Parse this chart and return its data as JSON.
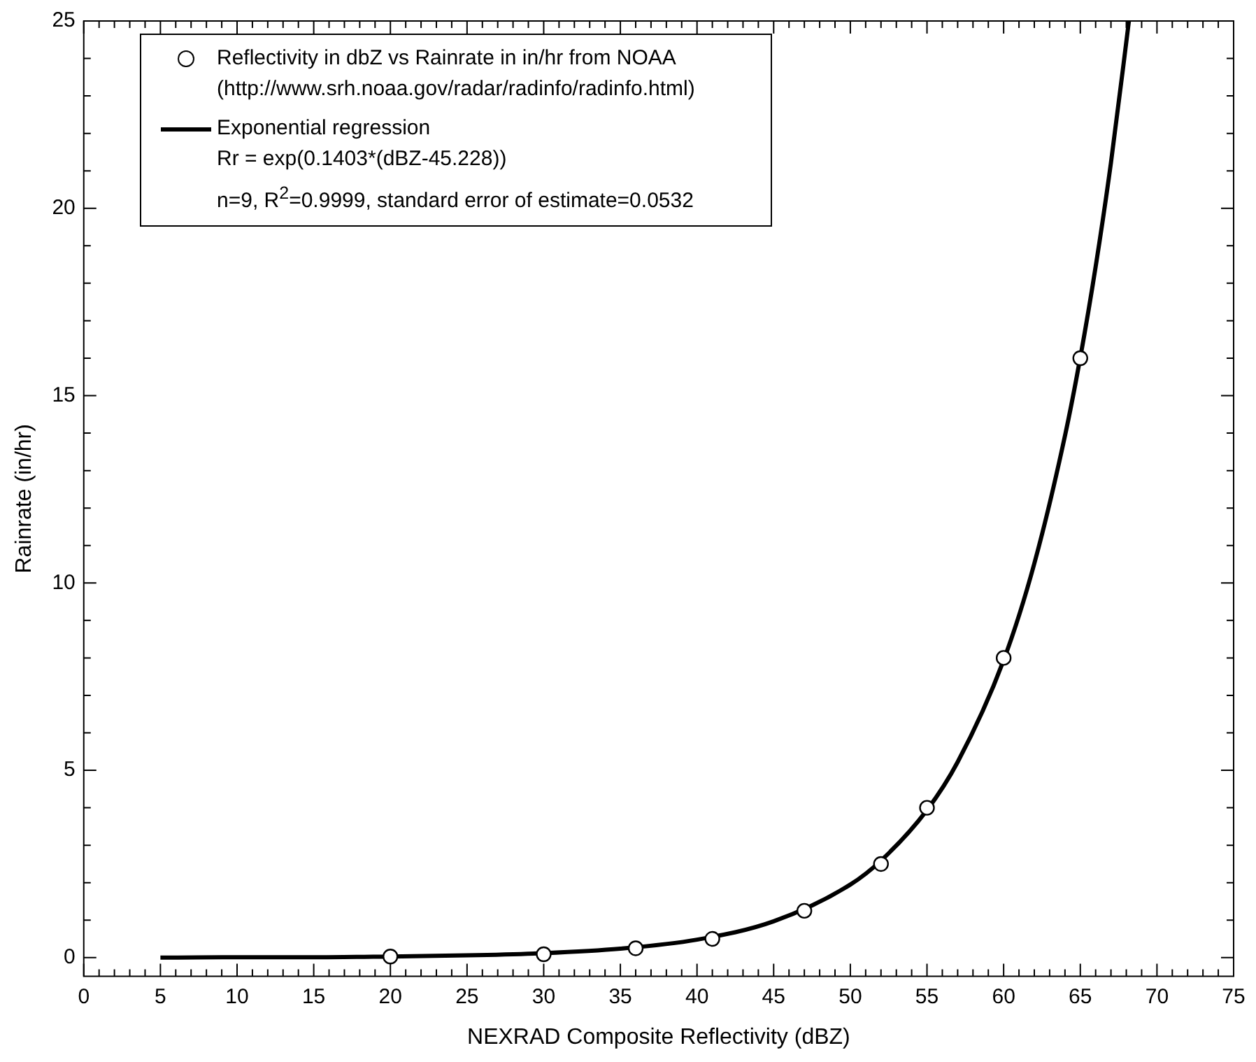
{
  "chart_data": {
    "type": "scatter",
    "xlabel": "NEXRAD Composite Reflectivity (dBZ)",
    "ylabel": "Rainrate (in/hr)",
    "xlim": [
      0,
      75
    ],
    "ylim": [
      -0.5,
      25
    ],
    "xticks": [
      0,
      {
        "value": 1,
        "label": null
      },
      {
        "value": 2,
        "label": null
      },
      {
        "value": 3,
        "label": null
      },
      {
        "value": 4,
        "label": null
      },
      5,
      {
        "value": 6,
        "label": null
      },
      {
        "value": 7,
        "label": null
      },
      {
        "value": 8,
        "label": null
      },
      {
        "value": 9,
        "label": null
      },
      10,
      {
        "value": 11,
        "label": null
      },
      {
        "value": 12,
        "label": null
      },
      {
        "value": 13,
        "label": null
      },
      {
        "value": 14,
        "label": null
      },
      15,
      {
        "value": 16,
        "label": null
      },
      {
        "value": 17,
        "label": null
      },
      {
        "value": 18,
        "label": null
      },
      {
        "value": 19,
        "label": null
      },
      20,
      {
        "value": 21,
        "label": null
      },
      {
        "value": 22,
        "label": null
      },
      {
        "value": 23,
        "label": null
      },
      {
        "value": 24,
        "label": null
      },
      25,
      {
        "value": 26,
        "label": null
      },
      {
        "value": 27,
        "label": null
      },
      {
        "value": 28,
        "label": null
      },
      {
        "value": 29,
        "label": null
      },
      30,
      {
        "value": 31,
        "label": null
      },
      {
        "value": 32,
        "label": null
      },
      {
        "value": 33,
        "label": null
      },
      {
        "value": 34,
        "label": null
      },
      35,
      {
        "value": 36,
        "label": null
      },
      {
        "value": 37,
        "label": null
      },
      {
        "value": 38,
        "label": null
      },
      {
        "value": 39,
        "label": null
      },
      40,
      {
        "value": 41,
        "label": null
      },
      {
        "value": 42,
        "label": null
      },
      {
        "value": 43,
        "label": null
      },
      {
        "value": 44,
        "label": null
      },
      45,
      {
        "value": 46,
        "label": null
      },
      {
        "value": 47,
        "label": null
      },
      {
        "value": 48,
        "label": null
      },
      {
        "value": 49,
        "label": null
      },
      50,
      {
        "value": 51,
        "label": null
      },
      {
        "value": 52,
        "label": null
      },
      {
        "value": 53,
        "label": null
      },
      {
        "value": 54,
        "label": null
      },
      55,
      {
        "value": 56,
        "label": null
      },
      {
        "value": 57,
        "label": null
      },
      {
        "value": 58,
        "label": null
      },
      {
        "value": 59,
        "label": null
      },
      60,
      {
        "value": 61,
        "label": null
      },
      {
        "value": 62,
        "label": null
      },
      {
        "value": 63,
        "label": null
      },
      {
        "value": 64,
        "label": null
      },
      65,
      {
        "value": 66,
        "label": null
      },
      {
        "value": 67,
        "label": null
      },
      {
        "value": 68,
        "label": null
      },
      {
        "value": 69,
        "label": null
      },
      70,
      {
        "value": 71,
        "label": null
      },
      {
        "value": 72,
        "label": null
      },
      {
        "value": 73,
        "label": null
      },
      {
        "value": 74,
        "label": null
      },
      75
    ],
    "yticks": [
      0,
      {
        "value": 1,
        "label": null
      },
      {
        "value": 2,
        "label": null
      },
      {
        "value": 3,
        "label": null
      },
      {
        "value": 4,
        "label": null
      },
      5,
      {
        "value": 6,
        "label": null
      },
      {
        "value": 7,
        "label": null
      },
      {
        "value": 8,
        "label": null
      },
      {
        "value": 9,
        "label": null
      },
      10,
      {
        "value": 11,
        "label": null
      },
      {
        "value": 12,
        "label": null
      },
      {
        "value": 13,
        "label": null
      },
      {
        "value": 14,
        "label": null
      },
      15,
      {
        "value": 16,
        "label": null
      },
      {
        "value": 17,
        "label": null
      },
      {
        "value": 18,
        "label": null
      },
      {
        "value": 19,
        "label": null
      },
      20,
      {
        "value": 21,
        "label": null
      },
      {
        "value": 22,
        "label": null
      },
      {
        "value": 23,
        "label": null
      },
      {
        "value": 24,
        "label": null
      },
      25
    ],
    "legend": "top left",
    "grid": false,
    "series": [
      {
        "name": "Reflectivity in dbZ vs Rainrate in in/hr from NOAA (http://www.srh.noaa.gov/radar/radinfo/radinfo.html)",
        "type": "scatter",
        "marker": "circle",
        "color": "#000000",
        "x": [
          20,
          30,
          36,
          41,
          47,
          52,
          55,
          60,
          65
        ],
        "values": [
          0.03,
          0.09,
          0.25,
          0.5,
          1.25,
          2.5,
          4,
          8,
          16
        ]
      },
      {
        "name": "Exponential regression",
        "type": "line",
        "marker": "none",
        "line_style": "solid",
        "color": "#000000",
        "x": [
          5,
          10,
          15,
          20,
          25,
          30,
          35,
          40,
          45,
          50,
          52,
          55,
          57,
          60,
          62,
          64,
          65,
          66,
          67,
          68.17
        ],
        "values": [
          0,
          0.01,
          0.01,
          0.03,
          0.06,
          0.12,
          0.24,
          0.48,
          0.97,
          1.95,
          2.59,
          3.94,
          5.22,
          7.94,
          10.52,
          13.93,
          16.02,
          18.44,
          21.22,
          25
        ]
      }
    ],
    "annotations": [
      "Rr = exp(0.1403*(dBZ-45.228))",
      "n=9, R$^{2}$=0.9999, standard error of estimate=0.0532"
    ]
  }
}
